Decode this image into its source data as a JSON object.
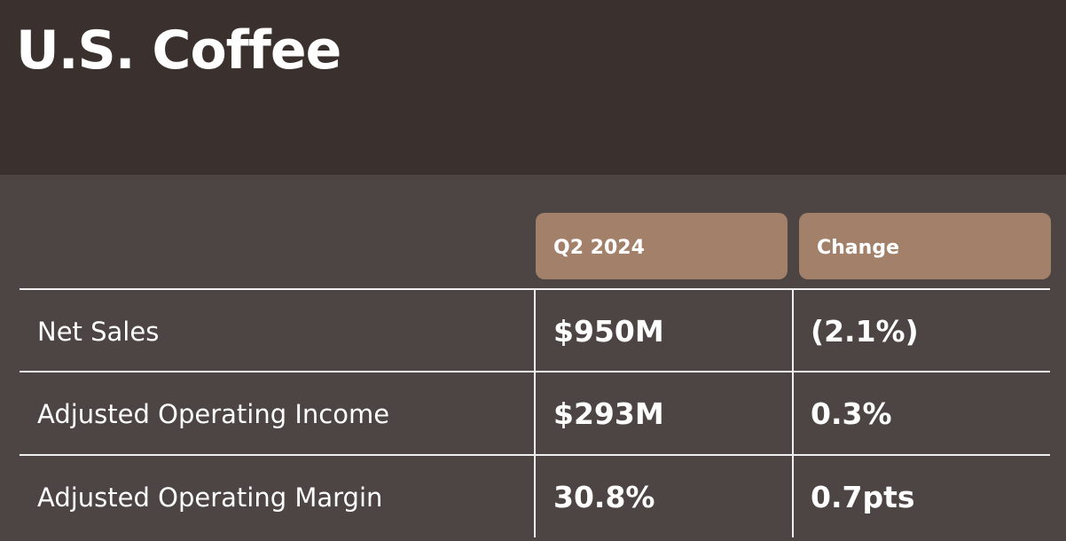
{
  "title": "U.S. Coffee",
  "columns": [
    "Q2 2024",
    "Change"
  ],
  "rows": [
    {
      "label": "Net Sales",
      "value": "$950M",
      "change": "(2.1%)"
    },
    {
      "label": "Adjusted Operating Income",
      "value": "$293M",
      "change": "0.3%"
    },
    {
      "label": "Adjusted Operating Margin",
      "value": "30.8%",
      "change": "0.7pts"
    }
  ]
}
